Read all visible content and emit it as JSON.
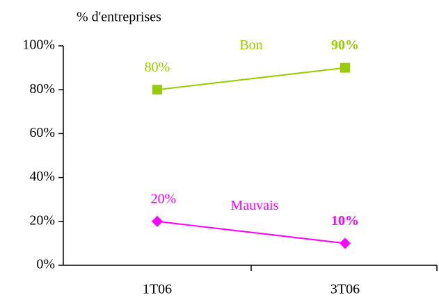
{
  "chart_data": {
    "type": "line",
    "ylabel": "% d'entreprises",
    "categories": [
      "1T06",
      "3T06"
    ],
    "series": [
      {
        "name": "Bon",
        "color": "#99cc00",
        "marker": "square",
        "values": [
          80,
          90
        ],
        "value_labels": [
          "80%",
          "90%"
        ]
      },
      {
        "name": "Mauvais",
        "color": "#ff00ff",
        "marker": "diamond",
        "values": [
          20,
          10
        ],
        "value_labels": [
          "20%",
          "10%"
        ]
      }
    ],
    "ylim": [
      0,
      100
    ],
    "yticks": [
      {
        "value": 0,
        "label": "0%"
      },
      {
        "value": 20,
        "label": "20%"
      },
      {
        "value": 40,
        "label": "40%"
      },
      {
        "value": 60,
        "label": "60%"
      },
      {
        "value": 80,
        "label": "80%"
      },
      {
        "value": 100,
        "label": "100%"
      }
    ],
    "grid": false
  }
}
